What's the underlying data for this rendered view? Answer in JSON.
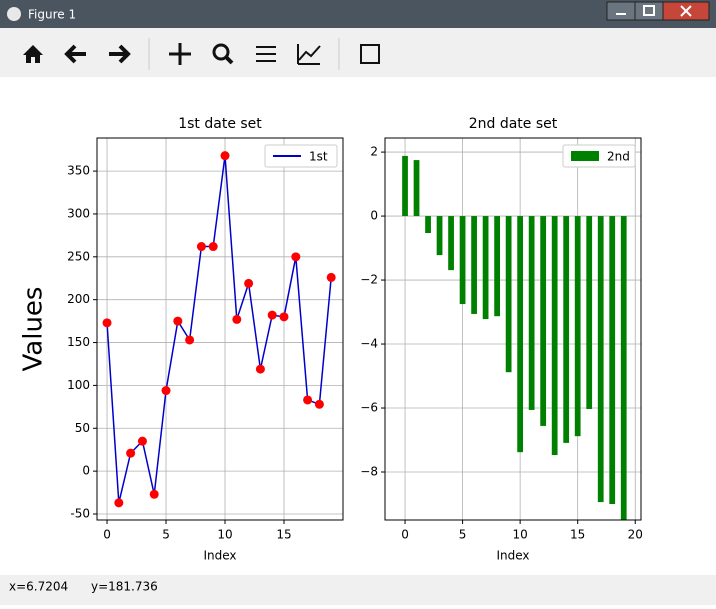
{
  "window": {
    "title": "Figure 1"
  },
  "status": {
    "x": "x=6.7204",
    "y": "y=181.736"
  },
  "chart_data": [
    {
      "type": "line",
      "title": "1st date set",
      "x_label": "Index",
      "y_label": "Values",
      "x": [
        0,
        1,
        2,
        3,
        4,
        5,
        6,
        7,
        8,
        9,
        10,
        11,
        12,
        13,
        14,
        15,
        16,
        17,
        18,
        19
      ],
      "series": [
        {
          "name": "1st",
          "color": "#0000cc",
          "marker_color": "#ff0000",
          "values": [
            173,
            -37,
            21,
            35,
            -27,
            94,
            175,
            153,
            262,
            262,
            368,
            177,
            219,
            119,
            182,
            180,
            250,
            83,
            78,
            226
          ]
        }
      ],
      "xlim": [
        -0.85,
        20.0
      ],
      "ylim": [
        -57,
        388.6
      ],
      "xticks": [
        0,
        5,
        10,
        15
      ],
      "yticks": [
        -50,
        0,
        50,
        100,
        150,
        200,
        250,
        300,
        350
      ],
      "grid": true,
      "legend": "upper-right"
    },
    {
      "type": "bar",
      "title": "2nd date set",
      "x_label": "Index",
      "x": [
        0,
        1,
        2,
        3,
        4,
        5,
        6,
        7,
        8,
        9,
        10,
        11,
        12,
        13,
        14,
        15,
        16,
        17,
        18,
        19
      ],
      "series": [
        {
          "name": "2nd",
          "color": "#008000",
          "values": [
            1.88,
            1.75,
            -0.53,
            -1.22,
            -1.69,
            -2.75,
            -3.06,
            -3.22,
            -3.13,
            -4.88,
            -7.38,
            -6.06,
            -6.56,
            -7.47,
            -7.09,
            -6.88,
            -6.03,
            -8.94,
            -9.0,
            -9.7
          ]
        }
      ],
      "bar_width": 0.5,
      "xlim": [
        -1.74,
        20.5
      ],
      "ylim": [
        -9.5,
        2.44
      ],
      "xticks": [
        0,
        5,
        10,
        15,
        20
      ],
      "yticks": [
        2,
        0,
        {
          "value": -2,
          "label": "−2"
        },
        {
          "value": -4,
          "label": "−4"
        },
        {
          "value": -6,
          "label": "−6"
        },
        {
          "value": -8,
          "label": "−8"
        }
      ],
      "grid": true,
      "legend": "upper-right"
    }
  ]
}
